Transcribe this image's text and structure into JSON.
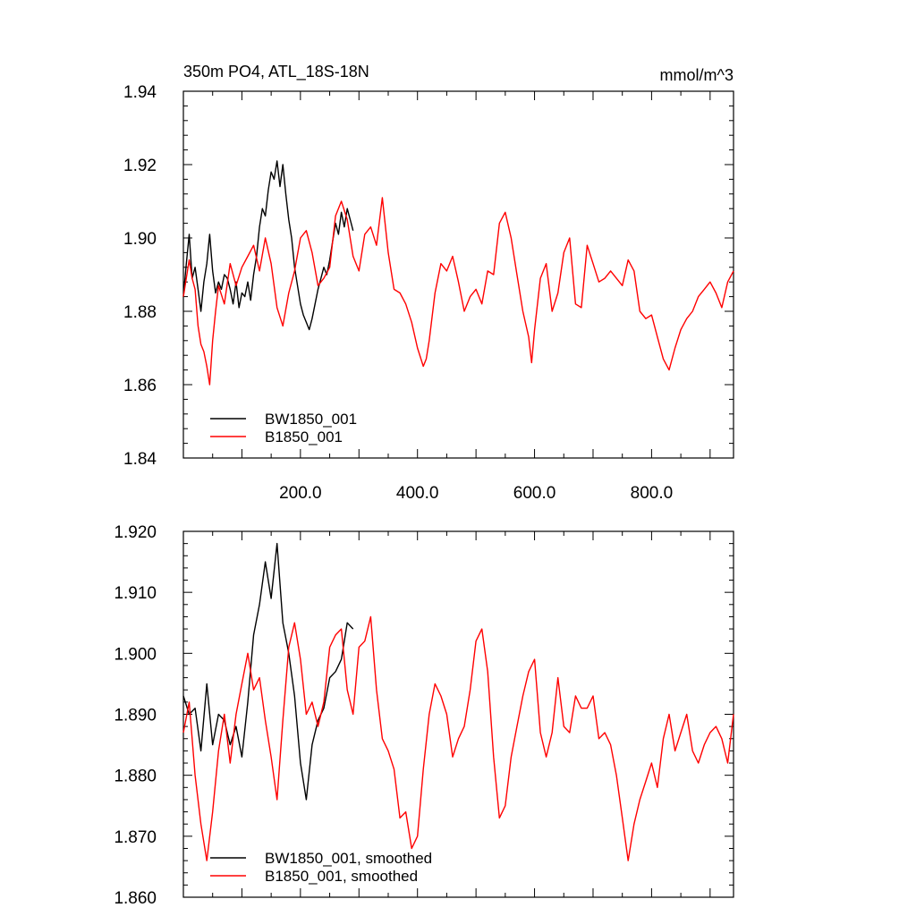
{
  "chart_data": [
    {
      "type": "line",
      "title": "350m PO4, ATL_18S-18N",
      "units": "mmol/m^3",
      "xlim": [
        0,
        940
      ],
      "ylim": [
        1.84,
        1.94
      ],
      "x_ticks": [
        200,
        400,
        600,
        800
      ],
      "x_tick_labels": [
        "200.0",
        "400.0",
        "600.0",
        "800.0"
      ],
      "y_ticks": [
        1.84,
        1.86,
        1.88,
        1.9,
        1.92,
        1.94
      ],
      "y_tick_labels": [
        "1.84",
        "1.86",
        "1.88",
        "1.90",
        "1.92",
        "1.94"
      ],
      "grid": false,
      "legend": "bottom-left",
      "series": [
        {
          "name": "BW1850_001",
          "color": "#000000",
          "x": [
            0,
            5,
            10,
            15,
            20,
            25,
            30,
            35,
            40,
            45,
            50,
            55,
            60,
            65,
            70,
            75,
            80,
            85,
            90,
            95,
            100,
            105,
            110,
            115,
            120,
            125,
            130,
            135,
            140,
            145,
            150,
            155,
            160,
            165,
            170,
            175,
            180,
            185,
            190,
            195,
            200,
            205,
            210,
            215,
            220,
            225,
            230,
            235,
            240,
            245,
            250,
            255,
            260,
            265,
            270,
            275,
            280,
            285,
            290
          ],
          "values": [
            1.884,
            1.893,
            1.901,
            1.889,
            1.892,
            1.886,
            1.88,
            1.888,
            1.893,
            1.901,
            1.891,
            1.885,
            1.888,
            1.886,
            1.89,
            1.889,
            1.886,
            1.882,
            1.888,
            1.881,
            1.885,
            1.884,
            1.888,
            1.883,
            1.89,
            1.895,
            1.903,
            1.908,
            1.906,
            1.913,
            1.918,
            1.916,
            1.921,
            1.914,
            1.92,
            1.912,
            1.905,
            1.9,
            1.892,
            1.887,
            1.882,
            1.879,
            1.877,
            1.875,
            1.878,
            1.882,
            1.886,
            1.889,
            1.892,
            1.89,
            1.894,
            1.899,
            1.904,
            1.901,
            1.907,
            1.903,
            1.908,
            1.905,
            1.902
          ]
        },
        {
          "name": "B1850_001",
          "color": "#ff0000",
          "x": [
            0,
            10,
            15,
            20,
            25,
            30,
            35,
            40,
            45,
            50,
            55,
            60,
            70,
            80,
            90,
            100,
            110,
            120,
            130,
            140,
            150,
            160,
            170,
            180,
            190,
            200,
            210,
            220,
            230,
            240,
            250,
            260,
            270,
            280,
            290,
            300,
            310,
            320,
            330,
            340,
            350,
            360,
            370,
            380,
            390,
            400,
            410,
            415,
            420,
            430,
            440,
            450,
            460,
            470,
            480,
            490,
            500,
            510,
            520,
            530,
            540,
            550,
            560,
            570,
            580,
            590,
            595,
            600,
            610,
            620,
            630,
            640,
            650,
            660,
            670,
            680,
            690,
            700,
            710,
            720,
            730,
            740,
            750,
            760,
            770,
            780,
            790,
            800,
            810,
            820,
            830,
            840,
            850,
            860,
            870,
            880,
            890,
            900,
            910,
            920,
            930,
            940
          ],
          "values": [
            1.884,
            1.894,
            1.889,
            1.886,
            1.876,
            1.871,
            1.869,
            1.865,
            1.86,
            1.872,
            1.88,
            1.887,
            1.882,
            1.893,
            1.887,
            1.892,
            1.895,
            1.898,
            1.891,
            1.9,
            1.893,
            1.881,
            1.876,
            1.885,
            1.891,
            1.9,
            1.902,
            1.896,
            1.887,
            1.889,
            1.892,
            1.906,
            1.91,
            1.905,
            1.895,
            1.891,
            1.901,
            1.903,
            1.898,
            1.911,
            1.896,
            1.886,
            1.885,
            1.882,
            1.877,
            1.87,
            1.865,
            1.867,
            1.872,
            1.885,
            1.893,
            1.891,
            1.895,
            1.888,
            1.88,
            1.884,
            1.886,
            1.882,
            1.891,
            1.89,
            1.904,
            1.907,
            1.9,
            1.89,
            1.88,
            1.873,
            1.866,
            1.875,
            1.889,
            1.893,
            1.88,
            1.885,
            1.896,
            1.9,
            1.882,
            1.881,
            1.898,
            1.893,
            1.888,
            1.889,
            1.891,
            1.889,
            1.887,
            1.894,
            1.891,
            1.88,
            1.878,
            1.879,
            1.873,
            1.867,
            1.864,
            1.87,
            1.875,
            1.878,
            1.88,
            1.884,
            1.886,
            1.888,
            1.885,
            1.881,
            1.888,
            1.891
          ]
        }
      ]
    },
    {
      "type": "line",
      "xlim": [
        0,
        940
      ],
      "ylim": [
        1.86,
        1.92
      ],
      "y_ticks": [
        1.86,
        1.87,
        1.88,
        1.89,
        1.9,
        1.91,
        1.92
      ],
      "y_tick_labels": [
        "1.860",
        "1.870",
        "1.880",
        "1.890",
        "1.900",
        "1.910",
        "1.920"
      ],
      "grid": false,
      "legend": "bottom-left",
      "series": [
        {
          "name": "BW1850_001, smoothed",
          "color": "#000000",
          "x": [
            0,
            10,
            20,
            30,
            40,
            50,
            60,
            70,
            80,
            90,
            100,
            110,
            120,
            130,
            140,
            150,
            160,
            170,
            180,
            190,
            200,
            210,
            220,
            230,
            240,
            250,
            260,
            270,
            280,
            290
          ],
          "values": [
            1.893,
            1.89,
            1.891,
            1.884,
            1.895,
            1.885,
            1.89,
            1.889,
            1.885,
            1.888,
            1.883,
            1.892,
            1.903,
            1.908,
            1.915,
            1.909,
            1.918,
            1.905,
            1.9,
            1.893,
            1.882,
            1.876,
            1.885,
            1.889,
            1.891,
            1.896,
            1.897,
            1.899,
            1.905,
            1.904
          ]
        },
        {
          "name": "B1850_001, smoothed",
          "color": "#ff0000",
          "x": [
            0,
            10,
            20,
            30,
            40,
            50,
            60,
            70,
            80,
            90,
            100,
            110,
            120,
            130,
            140,
            150,
            160,
            170,
            180,
            190,
            200,
            210,
            220,
            230,
            240,
            250,
            260,
            270,
            280,
            290,
            300,
            310,
            320,
            330,
            340,
            350,
            360,
            370,
            380,
            390,
            400,
            410,
            420,
            430,
            440,
            450,
            460,
            470,
            480,
            490,
            500,
            510,
            520,
            530,
            540,
            550,
            560,
            570,
            580,
            590,
            600,
            610,
            620,
            630,
            640,
            650,
            660,
            670,
            680,
            690,
            700,
            710,
            720,
            730,
            740,
            750,
            760,
            770,
            780,
            790,
            800,
            810,
            820,
            830,
            840,
            850,
            860,
            870,
            880,
            890,
            900,
            910,
            920,
            930,
            940
          ],
          "values": [
            1.887,
            1.892,
            1.88,
            1.872,
            1.866,
            1.874,
            1.884,
            1.89,
            1.882,
            1.89,
            1.895,
            1.9,
            1.894,
            1.896,
            1.889,
            1.883,
            1.876,
            1.889,
            1.901,
            1.905,
            1.899,
            1.89,
            1.892,
            1.888,
            1.892,
            1.901,
            1.903,
            1.904,
            1.894,
            1.89,
            1.901,
            1.902,
            1.906,
            1.894,
            1.886,
            1.884,
            1.881,
            1.873,
            1.874,
            1.868,
            1.87,
            1.881,
            1.89,
            1.895,
            1.893,
            1.89,
            1.883,
            1.886,
            1.888,
            1.894,
            1.902,
            1.904,
            1.897,
            1.883,
            1.873,
            1.875,
            1.883,
            1.888,
            1.893,
            1.897,
            1.899,
            1.887,
            1.883,
            1.887,
            1.896,
            1.888,
            1.887,
            1.893,
            1.891,
            1.891,
            1.893,
            1.886,
            1.887,
            1.885,
            1.88,
            1.873,
            1.866,
            1.872,
            1.876,
            1.879,
            1.882,
            1.878,
            1.886,
            1.89,
            1.884,
            1.887,
            1.89,
            1.884,
            1.882,
            1.885,
            1.887,
            1.888,
            1.886,
            1.882,
            1.89
          ]
        }
      ]
    }
  ]
}
